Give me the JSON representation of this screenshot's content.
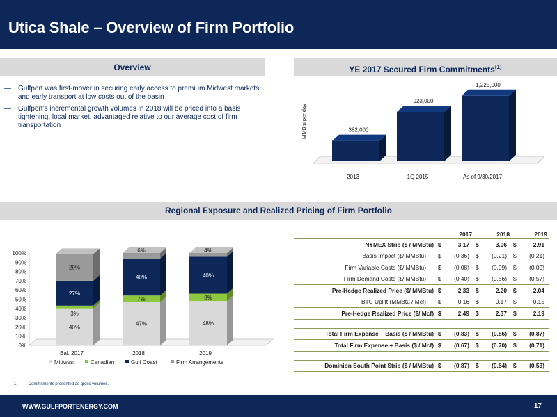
{
  "title": "Utica Shale – Overview of Firm Portfolio",
  "overview": {
    "heading": "Overview",
    "bullet_marker": "—",
    "bullets": [
      "Gulfport was first-mover in securing early access to premium Midwest markets and early transport at low costs out of the basin",
      "Gulfport’s incremental growth volumes in 2018 will be priced into a basis tightening, local market, advantaged relative to our average cost of firm transportation"
    ]
  },
  "commitments": {
    "heading": "YE 2017 Secured Firm Commitments",
    "heading_sup": "(1)",
    "chart_data": {
      "type": "bar",
      "title": "",
      "ylabel": "MMBtu per day",
      "categories": [
        "2013",
        "1Q 2015",
        "As of 9/30/2017"
      ],
      "values": [
        382000,
        923000,
        1225000
      ],
      "value_labels": [
        "382,000",
        "923,000",
        "1,225,000"
      ],
      "ylim": [
        0,
        1300000
      ],
      "color": "#0c2758",
      "grid": false
    }
  },
  "regional": {
    "heading": "Regional Exposure and Realized Pricing of Firm Portfolio",
    "chart_data": {
      "type": "bar",
      "stacked": true,
      "categories": [
        "Bal. 2017",
        "2018",
        "2019"
      ],
      "yticks": [
        "0%",
        "10%",
        "20%",
        "30%",
        "40%",
        "50%",
        "60%",
        "70%",
        "80%",
        "90%",
        "100%"
      ],
      "ylim": [
        0,
        100
      ],
      "legend_position": "bottom",
      "series": [
        {
          "name": "Midwest",
          "color": "#d9d9d9",
          "values": [
            40,
            47,
            48
          ],
          "labels": [
            "40%",
            "47%",
            "48%"
          ]
        },
        {
          "name": "Canadian",
          "color": "#8dc63f",
          "values": [
            3,
            7,
            8
          ],
          "labels": [
            "3%",
            "7%",
            "8%"
          ]
        },
        {
          "name": "Gulf Coast",
          "color": "#0c2758",
          "values": [
            27,
            40,
            40
          ],
          "labels": [
            "27%",
            "40%",
            "40%"
          ]
        },
        {
          "name": "Firm Arrangements",
          "color": "#9a9a9a",
          "values": [
            29,
            6,
            4
          ],
          "labels": [
            "29%",
            "6%",
            "4%"
          ]
        }
      ]
    },
    "table": {
      "columns": [
        "2017",
        "2018",
        "2019"
      ],
      "rows": [
        {
          "label": "NYMEX Strip ($ / MMBtu)",
          "style": "bold",
          "cells": [
            [
              "$",
              "3.17"
            ],
            [
              "$",
              "3.06"
            ],
            [
              "$",
              "2.91"
            ]
          ]
        },
        {
          "label": "Basis Impact ($/ MMBtu)",
          "style": "indent",
          "cells": [
            [
              "$",
              "(0.36)"
            ],
            [
              "$",
              "(0.21)"
            ],
            [
              "$",
              "(0.21)"
            ]
          ]
        },
        {
          "label": "Firm Variable Costs ($/ MMBtu)",
          "style": "indent",
          "cells": [
            [
              "$",
              "(0.08)"
            ],
            [
              "$",
              "(0.09)"
            ],
            [
              "$",
              "(0.09)"
            ]
          ]
        },
        {
          "label": "Firm Demand Costs ($/ MMBtu)",
          "style": "indent line",
          "cells": [
            [
              "$",
              "(0.40)"
            ],
            [
              "$",
              "(0.56)"
            ],
            [
              "$",
              "(0.57)"
            ]
          ]
        },
        {
          "label": "Pre-Hedge Realized Price ($/ MMBtu)",
          "style": "bold",
          "cells": [
            [
              "$",
              "2.33"
            ],
            [
              "$",
              "2.20"
            ],
            [
              "$",
              "2.04"
            ]
          ]
        },
        {
          "label": "BTU Uplift (MMBtu / Mcf)",
          "style": "indent line",
          "cells": [
            [
              "$",
              "0.16"
            ],
            [
              "$",
              "0.17"
            ],
            [
              "$",
              "0.15"
            ]
          ]
        },
        {
          "label": "Pre-Hedge Realized Price ($/ Mcf)",
          "style": "bold line",
          "cells": [
            [
              "$",
              "2.49"
            ],
            [
              "$",
              "2.37"
            ],
            [
              "$",
              "2.19"
            ]
          ]
        },
        {
          "label": "",
          "style": "spacer",
          "cells": [
            [
              "",
              ""
            ],
            [
              "",
              ""
            ],
            [
              "",
              ""
            ]
          ]
        },
        {
          "label": "Total Firm Expense + Basis ($ / MMBtu)",
          "style": "bold topline line",
          "cells": [
            [
              "$",
              "(0.83)"
            ],
            [
              "$",
              "(0.86)"
            ],
            [
              "$",
              "(0.87)"
            ]
          ]
        },
        {
          "label": "Total Firm Expense + Basis ($ / Mcf)",
          "style": "bold line",
          "cells": [
            [
              "$",
              "(0.67)"
            ],
            [
              "$",
              "(0.70)"
            ],
            [
              "$",
              "(0.71)"
            ]
          ]
        },
        {
          "label": "",
          "style": "spacer",
          "cells": [
            [
              "",
              ""
            ],
            [
              "",
              ""
            ],
            [
              "",
              ""
            ]
          ]
        },
        {
          "label": "Dominion South Point Strip ($ / MMBtu)",
          "style": "bold topline line",
          "cells": [
            [
              "$",
              "(0.87)"
            ],
            [
              "$",
              "(0.54)"
            ],
            [
              "$",
              "(0.53)"
            ]
          ]
        }
      ]
    }
  },
  "footnote": {
    "number": "1.",
    "text": "Commitments presented as gross volumes."
  },
  "footer": {
    "url": "WWW.GULFPORTENERGY.COM",
    "page": "17"
  }
}
